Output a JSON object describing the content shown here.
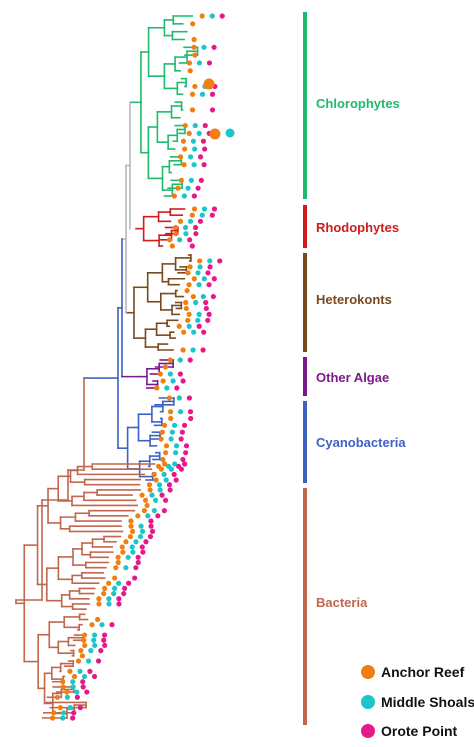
{
  "colors": {
    "chlorophytes": "#1fba6d",
    "rhodophytes": "#d01c1c",
    "heterokonts": "#7a4a1f",
    "other_algae": "#7b1a8a",
    "cyanobacteria": "#3d62c4",
    "bacteria": "#c0674d",
    "backbone": "#b8b8b8",
    "anchor_reef": "#f07f12",
    "middle_shoals": "#1bc5c9",
    "orote_point": "#e6198a"
  },
  "groups": [
    {
      "key": "chlorophytes",
      "label": "Chlorophytes",
      "tips": 24
    },
    {
      "key": "rhodophytes",
      "label": "Rhodophytes",
      "tips": 7
    },
    {
      "key": "heterokonts",
      "label": "Heterokonts",
      "tips": 17
    },
    {
      "key": "other_algae",
      "label": "Other Algae",
      "tips": 5
    },
    {
      "key": "cyanobacteria",
      "label": "Cyanobacteria",
      "tips": 13
    },
    {
      "key": "bacteria",
      "label": "Bacteria",
      "tips": 50
    }
  ],
  "legend": [
    {
      "key": "anchor_reef",
      "label": "Anchor Reef"
    },
    {
      "key": "middle_shoals",
      "label": "Middle Shoals"
    },
    {
      "key": "orote_point",
      "label": "Orote Point"
    }
  ]
}
